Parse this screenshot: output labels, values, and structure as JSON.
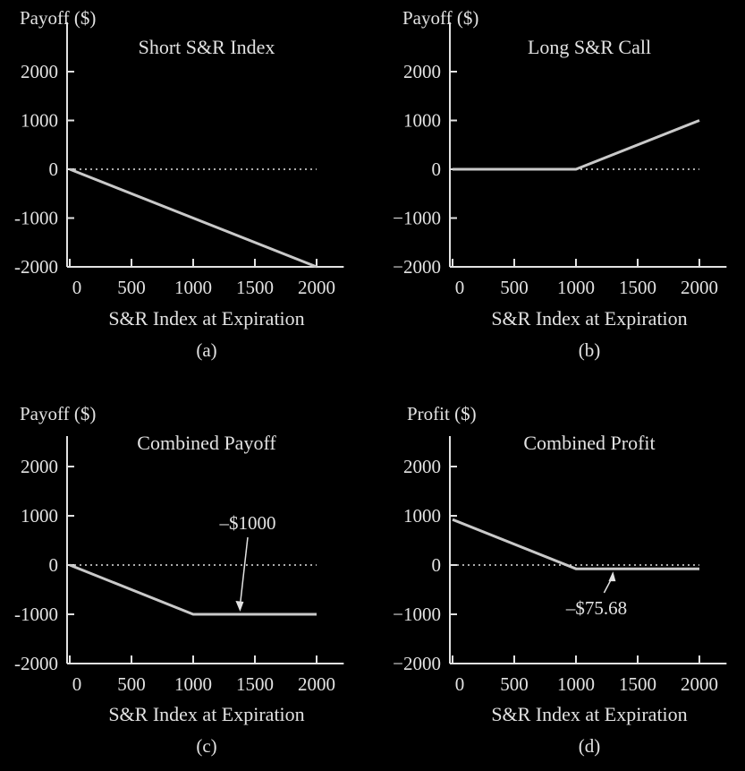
{
  "colors": {
    "background": "#000000",
    "axis": "#e2e2e2",
    "line": "#c9c9c9",
    "text": "#e2e2e2"
  },
  "chart_data": [
    {
      "type": "line",
      "caption": "(a)",
      "title": "Short S&R Index",
      "ylabel": "Payoff ($)",
      "xlabel": "S&R Index at Expiration",
      "xlim": [
        -50,
        2200
      ],
      "ylim": [
        -2000,
        2000
      ],
      "xticks": [
        0,
        500,
        1000,
        1500,
        2000
      ],
      "yticks": [
        2000,
        1000,
        0,
        -1000,
        -2000
      ],
      "ytick_labels": [
        "2000",
        "1000",
        "0",
        "-1000",
        "-2000"
      ],
      "zero_line": {
        "style": "dotted",
        "x_end": 2000
      },
      "series": [
        {
          "x": [
            0,
            2000
          ],
          "y": [
            0,
            -2000
          ]
        }
      ]
    },
    {
      "type": "line",
      "caption": "(b)",
      "title": "Long S&R Call",
      "ylabel": "Payoff ($)",
      "xlabel": "S&R Index at Expiration",
      "xlim": [
        -50,
        2200
      ],
      "ylim": [
        -2000,
        2000
      ],
      "xticks": [
        0,
        500,
        1000,
        1500,
        2000
      ],
      "yticks": [
        2000,
        1000,
        0,
        -1000,
        -2000
      ],
      "ytick_labels": [
        "2000",
        "1000",
        "0",
        "−1000",
        "−2000"
      ],
      "zero_line": {
        "style": "dotted",
        "x_end": 2000
      },
      "series": [
        {
          "x": [
            0,
            1000,
            2000
          ],
          "y": [
            0,
            0,
            1000
          ]
        }
      ]
    },
    {
      "type": "line",
      "caption": "(c)",
      "title": "Combined Payoff",
      "ylabel": "Payoff ($)",
      "xlabel": "S&R Index at Expiration",
      "xlim": [
        -50,
        2200
      ],
      "ylim": [
        -2000,
        2000
      ],
      "xticks": [
        0,
        500,
        1000,
        1500,
        2000
      ],
      "yticks": [
        2000,
        1000,
        0,
        -1000,
        -2000
      ],
      "ytick_labels": [
        "2000",
        "1000",
        "0",
        "-1000",
        "-2000"
      ],
      "zero_line": {
        "style": "dotted",
        "x_end": 2000
      },
      "series": [
        {
          "x": [
            0,
            1000,
            2000
          ],
          "y": [
            0,
            -1000,
            -1000
          ]
        }
      ],
      "annotation": {
        "text": "–$1000",
        "point": [
          1380,
          -1000
        ]
      }
    },
    {
      "type": "line",
      "caption": "(d)",
      "title": "Combined Profit",
      "ylabel": "Profit ($)",
      "xlabel": "S&R Index at Expiration",
      "xlim": [
        -50,
        2200
      ],
      "ylim": [
        -2000,
        2000
      ],
      "xticks": [
        0,
        500,
        1000,
        1500,
        2000
      ],
      "yticks": [
        2000,
        1000,
        0,
        -1000,
        -2000
      ],
      "ytick_labels": [
        "2000",
        "1000",
        "0",
        "−1000",
        "−2000"
      ],
      "zero_line": {
        "style": "dotted",
        "x_end": 2000
      },
      "series": [
        {
          "x": [
            0,
            1000,
            2000
          ],
          "y": [
            924.32,
            -75.68,
            -75.68
          ]
        }
      ],
      "annotation": {
        "text": "–$75.68",
        "point": [
          1300,
          -75.68
        ]
      }
    }
  ]
}
